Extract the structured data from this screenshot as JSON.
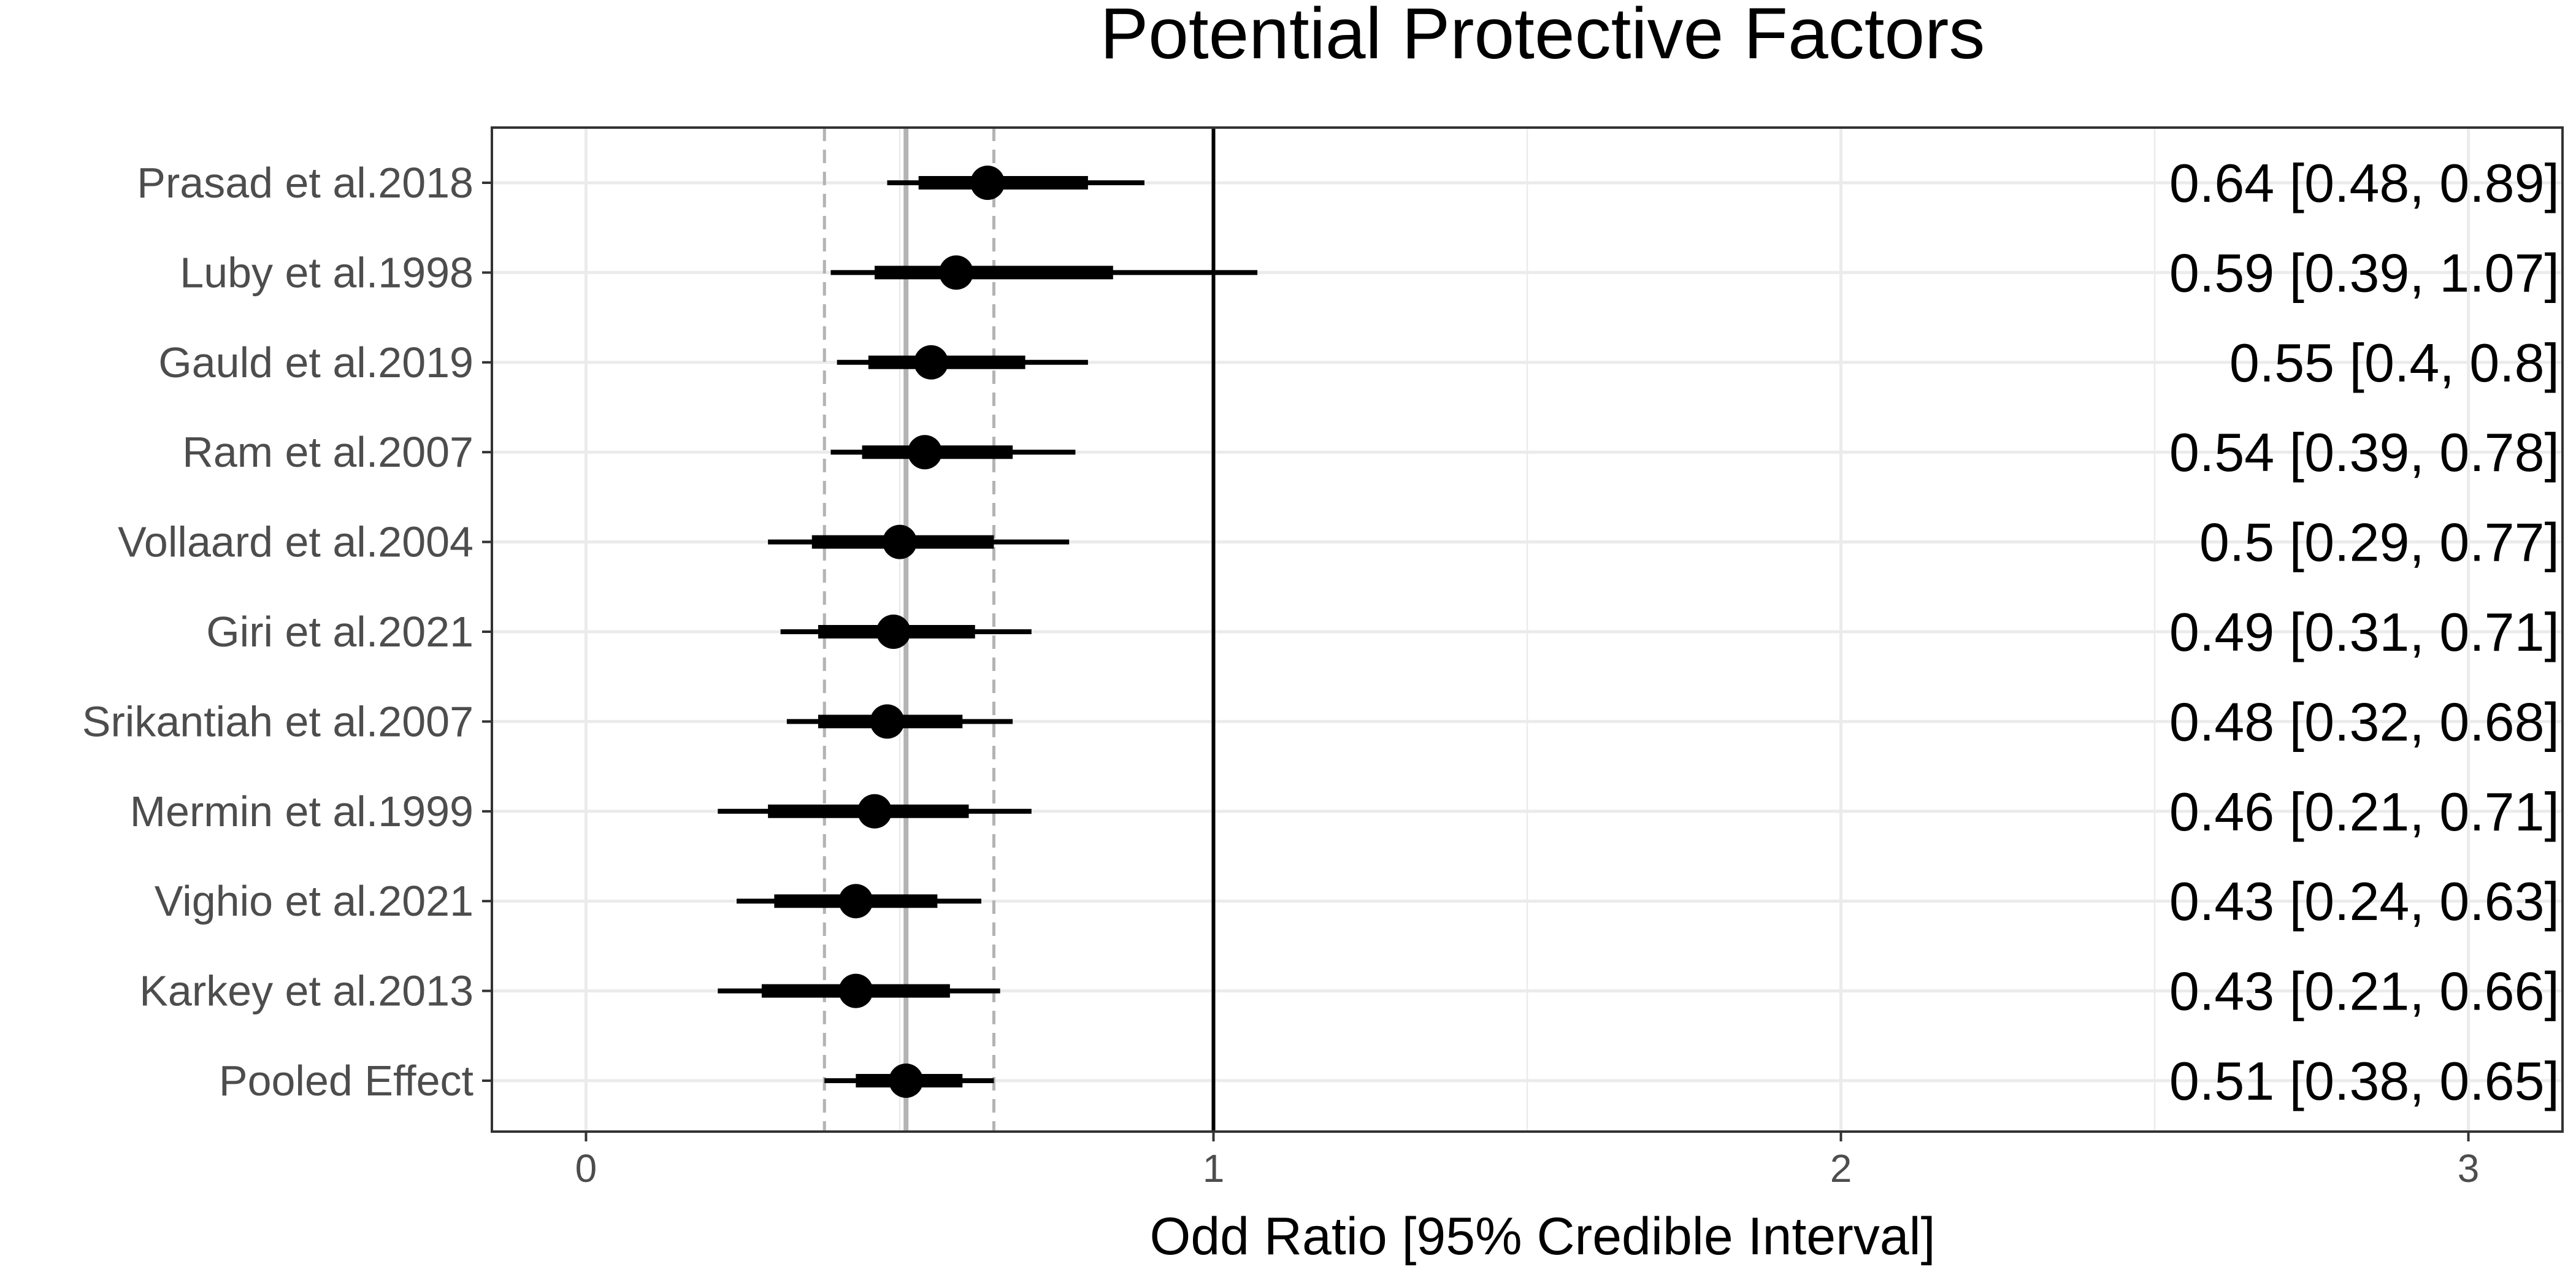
{
  "chart_data": {
    "type": "forest",
    "title": "Potential Protective Factors",
    "xlabel": "Odd Ratio [95% Credible Interval]",
    "ylabel": "",
    "xlim": [
      -0.15,
      3.15
    ],
    "x_ticks": [
      0,
      1,
      2,
      3
    ],
    "x_tick_labels": [
      "0",
      "1",
      "2",
      "3"
    ],
    "null_line": 1,
    "pooled_estimate": 0.51,
    "pooled_ci": [
      0.38,
      0.65
    ],
    "grid": true,
    "studies": [
      {
        "label": "Prasad et al.2018",
        "estimate": 0.64,
        "inner": [
          0.53,
          0.8
        ],
        "ci": [
          0.48,
          0.89
        ],
        "annotation": "0.64 [0.48, 0.89]"
      },
      {
        "label": "Luby et al.1998",
        "estimate": 0.59,
        "inner": [
          0.46,
          0.84
        ],
        "ci": [
          0.39,
          1.07
        ],
        "annotation": "0.59 [0.39, 1.07]"
      },
      {
        "label": "Gauld et al.2019",
        "estimate": 0.55,
        "inner": [
          0.45,
          0.7
        ],
        "ci": [
          0.4,
          0.8
        ],
        "annotation": "0.55 [0.4, 0.8]"
      },
      {
        "label": "Ram et al.2007",
        "estimate": 0.54,
        "inner": [
          0.44,
          0.68
        ],
        "ci": [
          0.39,
          0.78
        ],
        "annotation": "0.54 [0.39, 0.78]"
      },
      {
        "label": "Vollaard et al.2004",
        "estimate": 0.5,
        "inner": [
          0.36,
          0.65
        ],
        "ci": [
          0.29,
          0.77
        ],
        "annotation": "0.5 [0.29, 0.77]"
      },
      {
        "label": "Giri et al.2021",
        "estimate": 0.49,
        "inner": [
          0.37,
          0.62
        ],
        "ci": [
          0.31,
          0.71
        ],
        "annotation": "0.49 [0.31, 0.71]"
      },
      {
        "label": "Srikantiah et al.2007",
        "estimate": 0.48,
        "inner": [
          0.37,
          0.6
        ],
        "ci": [
          0.32,
          0.68
        ],
        "annotation": "0.48 [0.32, 0.68]"
      },
      {
        "label": "Mermin et al.1999",
        "estimate": 0.46,
        "inner": [
          0.29,
          0.61
        ],
        "ci": [
          0.21,
          0.71
        ],
        "annotation": "0.46 [0.21, 0.71]"
      },
      {
        "label": "Vighio et al.2021",
        "estimate": 0.43,
        "inner": [
          0.3,
          0.56
        ],
        "ci": [
          0.24,
          0.63
        ],
        "annotation": "0.43 [0.24, 0.63]"
      },
      {
        "label": "Karkey et al.2013",
        "estimate": 0.43,
        "inner": [
          0.28,
          0.58
        ],
        "ci": [
          0.21,
          0.66
        ],
        "annotation": "0.43 [0.21, 0.66]"
      },
      {
        "label": "Pooled Effect",
        "estimate": 0.51,
        "inner": [
          0.43,
          0.6
        ],
        "ci": [
          0.38,
          0.65
        ],
        "annotation": "0.51 [0.38, 0.65]"
      }
    ],
    "colors": {
      "point": "#000000",
      "interval": "#000000",
      "null_line": "#000000",
      "pooled_line": "#b3b3b3",
      "pooled_ci_line": "#b3b3b3",
      "grid": "#ebebeb",
      "axis_text": "#4d4d4d",
      "panel_border": "#333333"
    }
  }
}
